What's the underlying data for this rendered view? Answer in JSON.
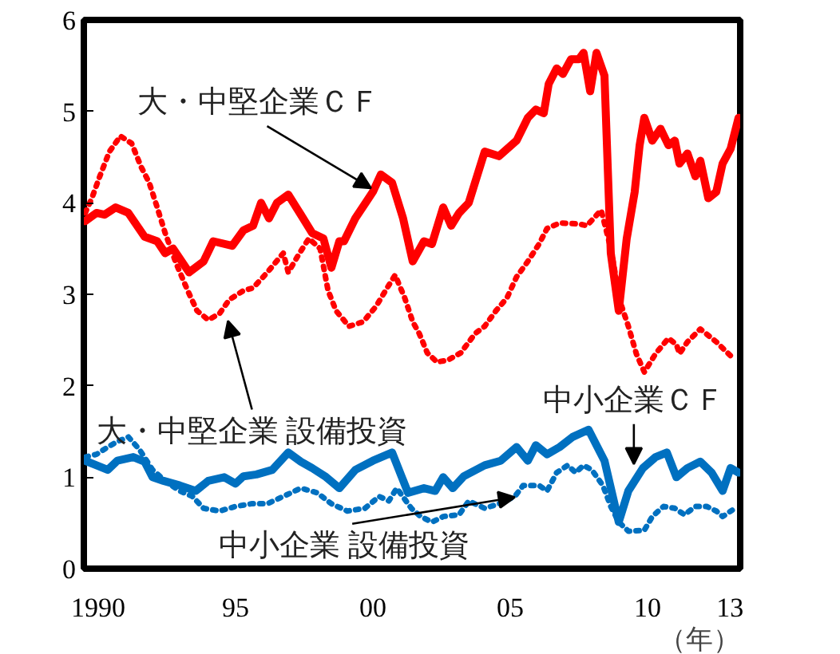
{
  "chart_data": {
    "type": "line",
    "xlim": [
      1989.48,
      2013.37
    ],
    "ylim": [
      0,
      6
    ],
    "xticks": [
      {
        "value": 1990,
        "label": "1990"
      },
      {
        "value": 1995,
        "label": "95"
      },
      {
        "value": 2000,
        "label": "00"
      },
      {
        "value": 2005,
        "label": "05"
      },
      {
        "value": 2010,
        "label": "10"
      },
      {
        "value": 2013,
        "label": "13"
      }
    ],
    "yticks": [
      0,
      1,
      2,
      3,
      4,
      5,
      6
    ],
    "xlabel": "（年）",
    "grid": false,
    "series": [
      {
        "color": "#ff0000",
        "line_style": "solid",
        "x": [
          1989.53,
          1989.94,
          1990.23,
          1990.64,
          1991.1,
          1991.69,
          1992.15,
          1992.44,
          1992.73,
          1993.31,
          1993.84,
          1994.19,
          1994.88,
          1995.29,
          1995.64,
          1995.93,
          1996.22,
          1996.51,
          1996.92,
          1997.38,
          1997.79,
          1998.2,
          1998.49,
          1998.78,
          1998.95,
          1999.36,
          2000.0,
          2000.29,
          2000.7,
          2001.1,
          2001.45,
          2001.86,
          2002.15,
          2002.56,
          2002.85,
          2003.14,
          2003.49,
          2004.07,
          2004.59,
          2005.23,
          2005.64,
          2005.93,
          2006.22,
          2006.4,
          2006.69,
          2006.92,
          2007.21,
          2007.5,
          2007.67,
          2007.91,
          2008.14,
          2008.43,
          2008.66,
          2008.95,
          2009.24,
          2009.53,
          2009.71,
          2009.88,
          2010.17,
          2010.47,
          2010.76,
          2010.99,
          2011.16,
          2011.45,
          2011.74,
          2011.92,
          2012.21,
          2012.5,
          2012.73,
          2013.02,
          2013.31
        ],
        "values": [
          3.8,
          3.89,
          3.87,
          3.95,
          3.89,
          3.63,
          3.58,
          3.45,
          3.5,
          3.24,
          3.36,
          3.58,
          3.53,
          3.7,
          3.75,
          4.0,
          3.83,
          4.0,
          4.09,
          3.87,
          3.67,
          3.61,
          3.29,
          3.58,
          3.58,
          3.83,
          4.12,
          4.31,
          4.22,
          3.83,
          3.36,
          3.58,
          3.55,
          3.95,
          3.75,
          3.89,
          4.0,
          4.56,
          4.51,
          4.68,
          4.93,
          5.02,
          4.98,
          5.3,
          5.47,
          5.41,
          5.57,
          5.57,
          5.64,
          5.22,
          5.64,
          5.39,
          3.45,
          2.82,
          3.61,
          4.12,
          4.63,
          4.93,
          4.68,
          4.81,
          4.63,
          4.68,
          4.43,
          4.54,
          4.29,
          4.46,
          4.05,
          4.12,
          4.43,
          4.59,
          4.93
        ]
      },
      {
        "color": "#ff0000",
        "line_style": "dotted",
        "x": [
          1989.53,
          1989.77,
          1990.06,
          1990.41,
          1990.81,
          1991.22,
          1991.57,
          1991.86,
          1992.15,
          1992.44,
          1992.85,
          1993.26,
          1993.6,
          1994.01,
          1994.42,
          1994.77,
          1995.29,
          1995.64,
          1996.16,
          1996.74,
          1996.92,
          1997.33,
          1997.67,
          1998.08,
          1998.37,
          1998.66,
          1999.13,
          1999.65,
          2000.12,
          2000.52,
          2000.81,
          2001.16,
          2001.45,
          2001.69,
          2001.98,
          2002.33,
          2002.73,
          2003.2,
          2003.72,
          2004.07,
          2004.48,
          2004.88,
          2005.23,
          2005.64,
          2006.05,
          2006.34,
          2006.8,
          2007.5,
          2007.79,
          2008.31,
          2008.66,
          2009.01,
          2009.3,
          2009.59,
          2009.88,
          2010.29,
          2010.76,
          2011.05,
          2011.16,
          2011.45,
          2011.92,
          2012.5,
          2013.08
        ],
        "values": [
          3.89,
          4.05,
          4.29,
          4.56,
          4.73,
          4.65,
          4.39,
          4.22,
          3.95,
          3.67,
          3.33,
          3.04,
          2.82,
          2.72,
          2.79,
          2.94,
          3.04,
          3.07,
          3.24,
          3.45,
          3.24,
          3.45,
          3.61,
          3.5,
          3.04,
          2.82,
          2.65,
          2.7,
          2.87,
          3.07,
          3.21,
          2.96,
          2.7,
          2.57,
          2.36,
          2.26,
          2.28,
          2.36,
          2.57,
          2.65,
          2.82,
          2.96,
          3.19,
          3.36,
          3.55,
          3.72,
          3.78,
          3.77,
          3.75,
          3.92,
          3.5,
          2.91,
          2.65,
          2.35,
          2.15,
          2.35,
          2.52,
          2.45,
          2.35,
          2.48,
          2.62,
          2.48,
          2.31
        ]
      },
      {
        "color": "#0070c0",
        "line_style": "solid",
        "x": [
          1989.53,
          1989.94,
          1990.35,
          1990.7,
          1991.28,
          1991.69,
          1991.98,
          1992.38,
          1992.97,
          1993.55,
          1994.01,
          1994.59,
          1995.0,
          1995.29,
          1995.76,
          1996.34,
          1996.92,
          1997.38,
          1997.79,
          1998.26,
          1998.78,
          1999.36,
          2000.0,
          2000.7,
          2001.28,
          2001.86,
          2002.27,
          2002.56,
          2002.91,
          2003.31,
          2004.07,
          2004.65,
          2005.23,
          2005.64,
          2005.93,
          2006.34,
          2006.8,
          2007.27,
          2007.85,
          2008.43,
          2008.95,
          2009.3,
          2009.83,
          2010.29,
          2010.7,
          2011.05,
          2011.45,
          2011.92,
          2012.33,
          2012.73,
          2013.02,
          2013.31
        ],
        "values": [
          1.18,
          1.13,
          1.08,
          1.18,
          1.22,
          1.17,
          1.0,
          0.96,
          0.91,
          0.85,
          0.96,
          1.0,
          0.93,
          1.01,
          1.03,
          1.08,
          1.27,
          1.17,
          1.1,
          1.01,
          0.88,
          1.08,
          1.18,
          1.27,
          0.83,
          0.88,
          0.85,
          1.0,
          0.88,
          1.01,
          1.13,
          1.18,
          1.33,
          1.18,
          1.35,
          1.25,
          1.33,
          1.44,
          1.52,
          1.18,
          0.51,
          0.85,
          1.1,
          1.22,
          1.27,
          1.0,
          1.1,
          1.17,
          1.05,
          0.85,
          1.1,
          1.05
        ]
      },
      {
        "color": "#0070c0",
        "line_style": "dotted",
        "x": [
          1989.53,
          1989.94,
          1990.35,
          1990.7,
          1991.1,
          1991.51,
          1991.98,
          1992.44,
          1992.97,
          1993.43,
          1993.84,
          1994.42,
          1995.0,
          1995.58,
          1996.16,
          1996.74,
          1997.38,
          1997.97,
          1998.49,
          1999.07,
          1999.71,
          2000.23,
          2000.58,
          2000.87,
          2001.4,
          2001.74,
          2002.15,
          2002.56,
          2003.14,
          2003.49,
          2004.07,
          2004.59,
          2005.17,
          2005.47,
          2006.05,
          2006.34,
          2006.69,
          2007.09,
          2007.38,
          2007.67,
          2007.97,
          2008.37,
          2008.66,
          2008.95,
          2009.3,
          2009.88,
          2010.17,
          2010.58,
          2010.99,
          2011.34,
          2011.74,
          2012.15,
          2012.5,
          2012.73,
          2013.08
        ],
        "values": [
          1.22,
          1.25,
          1.33,
          1.39,
          1.44,
          1.3,
          1.08,
          0.96,
          0.85,
          0.79,
          0.66,
          0.63,
          0.68,
          0.71,
          0.71,
          0.79,
          0.88,
          0.83,
          0.71,
          0.63,
          0.66,
          0.79,
          0.74,
          0.88,
          0.66,
          0.57,
          0.51,
          0.57,
          0.59,
          0.74,
          0.66,
          0.71,
          0.79,
          0.91,
          0.91,
          0.85,
          1.05,
          1.13,
          1.05,
          1.13,
          1.08,
          0.91,
          0.68,
          0.51,
          0.41,
          0.42,
          0.57,
          0.68,
          0.66,
          0.59,
          0.68,
          0.68,
          0.63,
          0.57,
          0.64
        ]
      }
    ],
    "annotations": [
      {
        "text": "大・中堅企業ＣＦ",
        "x": 2000.05,
        "y": 4.14
      },
      {
        "text": "大・中堅企業 設備投資",
        "x": 1994.7,
        "y": 2.74
      },
      {
        "text": "中小企業ＣＦ",
        "x": 2009.5,
        "y": 1.13
      },
      {
        "text": "中小企業 設備投資",
        "x": 2005.35,
        "y": 0.79
      }
    ]
  }
}
